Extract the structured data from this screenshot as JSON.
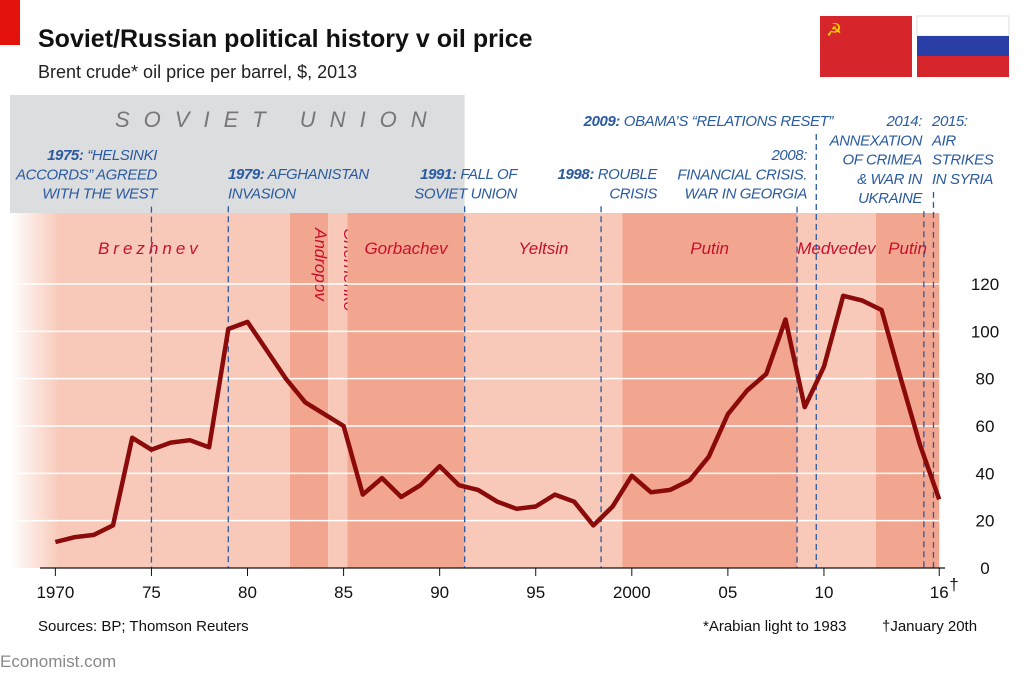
{
  "chart_data": {
    "type": "line",
    "title": "Soviet/Russian political history v oil price",
    "subtitle": "Brent crude* oil price per barrel, $, 2013",
    "x": [
      1970,
      1971,
      1972,
      1973,
      1974,
      1975,
      1976,
      1977,
      1978,
      1979,
      1980,
      1981,
      1982,
      1983,
      1984,
      1985,
      1986,
      1987,
      1988,
      1989,
      1990,
      1991,
      1992,
      1993,
      1994,
      1995,
      1996,
      1997,
      1998,
      1999,
      2000,
      2001,
      2002,
      2003,
      2004,
      2005,
      2006,
      2007,
      2008,
      2009,
      2010,
      2011,
      2012,
      2013,
      2014,
      2015,
      2016
    ],
    "values": [
      11,
      13,
      14,
      18,
      55,
      50,
      53,
      54,
      51,
      101,
      104,
      92,
      80,
      70,
      65,
      60,
      31,
      38,
      30,
      35,
      43,
      35,
      33,
      28,
      25,
      26,
      31,
      28,
      18,
      26,
      39,
      32,
      33,
      37,
      47,
      65,
      75,
      82,
      105,
      68,
      85,
      115,
      113,
      109,
      80,
      52,
      29
    ],
    "color": "#8b0a0a",
    "xlim": [
      1969.2,
      2016.3
    ],
    "ylim": [
      0,
      150
    ],
    "xticks": [
      {
        "value": 1970,
        "label": "1970"
      },
      {
        "value": 1975,
        "label": "75"
      },
      {
        "value": 1980,
        "label": "80"
      },
      {
        "value": 1985,
        "label": "85"
      },
      {
        "value": 1990,
        "label": "90"
      },
      {
        "value": 1995,
        "label": "95"
      },
      {
        "value": 2000,
        "label": "2000"
      },
      {
        "value": 2005,
        "label": "05"
      },
      {
        "value": 2010,
        "label": "10"
      },
      {
        "value": 2016,
        "label": "16"
      }
    ],
    "xtick_note": "†",
    "yticks": [
      0,
      20,
      40,
      60,
      80,
      100,
      120
    ],
    "grid": true,
    "soviet_union": {
      "label": "SOVIET UNION",
      "end": 1991.3
    },
    "leaders": [
      {
        "name": "Brezhnev",
        "end": 1982.2,
        "color": "#f8c9b9"
      },
      {
        "name": "Andropov",
        "end": 1984.2,
        "color": "#f3a68f",
        "vertical": true
      },
      {
        "name": "Chernenko",
        "end": 1985.2,
        "color": "#f8c9b9",
        "vertical": true
      },
      {
        "name": "Gorbachev",
        "end": 1991.3,
        "color": "#f3a68f"
      },
      {
        "name": "Yeltsin",
        "end": 1999.5,
        "color": "#f8c9b9"
      },
      {
        "name": "Putin",
        "end": 2008.6,
        "color": "#f3a68f"
      },
      {
        "name": "Medvedev",
        "end": 2012.7,
        "color": "#f8c9b9"
      },
      {
        "name": "Putin",
        "end": 2016.0,
        "color": "#f3a68f"
      }
    ],
    "events": [
      {
        "x": 1975.0,
        "year": "1975:",
        "lines": [
          "“HELSINKI",
          "ACCORDS” AGREED",
          "WITH THE WEST"
        ]
      },
      {
        "x": 1979.0,
        "year": "1979:",
        "lines": [
          "AFGHANISTAN",
          "INVASION"
        ]
      },
      {
        "x": 1991.3,
        "year": "1991:",
        "lines": [
          "FALL OF",
          "SOVIET UNION"
        ]
      },
      {
        "x": 1998.4,
        "year": "1998:",
        "lines": [
          "ROUBLE",
          "CRISIS"
        ]
      },
      {
        "x": 2009.6,
        "year": "2009:",
        "lines": [
          "OBAMA’S “RELATIONS RESET”"
        ]
      },
      {
        "x": 2008.6,
        "year": "2008:",
        "lines": [
          "FINANCIAL CRISIS.",
          "WAR IN GEORGIA"
        ],
        "year_alone": true
      },
      {
        "x": 2015.2,
        "year": "2014:",
        "lines": [
          "ANNEXATION",
          "OF CRIMEA",
          "& WAR IN",
          "UKRAINE"
        ],
        "year_alone": true
      },
      {
        "x": 2015.7,
        "year": "2015:",
        "lines": [
          "AIR",
          "STRIKES",
          "IN SYRIA"
        ],
        "year_alone": true
      }
    ],
    "source": "Sources: BP; Thomson Reuters",
    "footnotes": [
      "*Arabian light to 1983",
      "†January 20th"
    ],
    "credit": "Economist.com"
  }
}
